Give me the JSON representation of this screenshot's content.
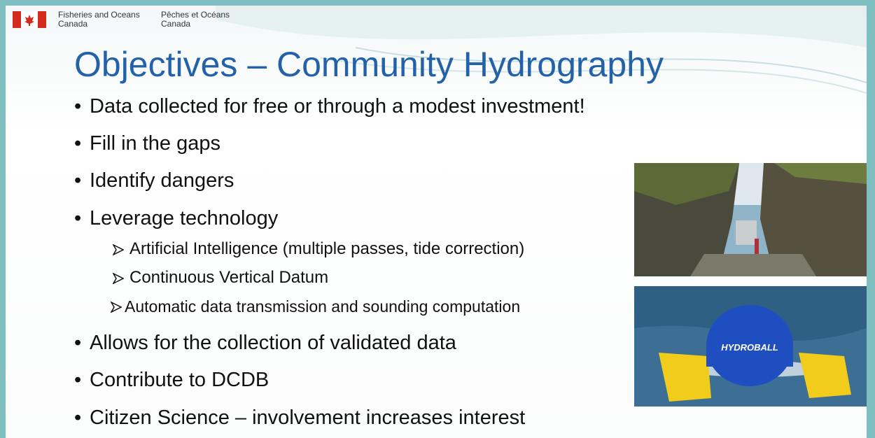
{
  "header": {
    "org_en": [
      "Fisheries and Oceans",
      "Canada"
    ],
    "org_fr": [
      "Pêches et Océans",
      "Canada"
    ]
  },
  "title": "Objectives – Community Hydrography",
  "bullets": [
    {
      "text": "Data collected for free or through a modest investment!"
    },
    {
      "text": "Fill in the gaps"
    },
    {
      "text": "Identify dangers"
    },
    {
      "text": "Leverage technology",
      "subs": [
        "Artificial Intelligence (multiple passes, tide correction)",
        "Continuous Vertical Datum",
        "Automatic data transmission and sounding computation"
      ]
    },
    {
      "text": "Allows for the collection of validated data"
    },
    {
      "text": "Contribute to DCDB"
    },
    {
      "text": "Citizen Science – involvement increases interest"
    }
  ],
  "images": [
    {
      "label": "HYDROBALL"
    }
  ]
}
